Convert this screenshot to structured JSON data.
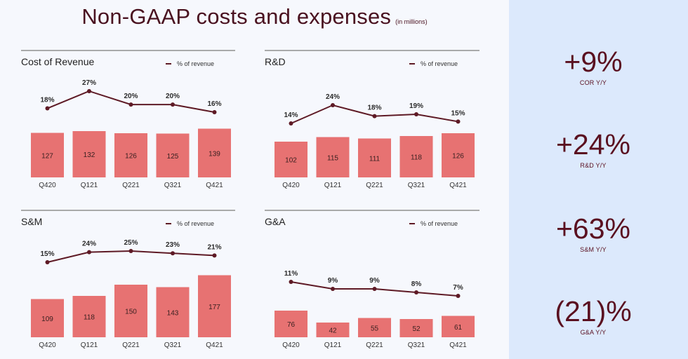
{
  "header": {
    "title": "Non-GAAP costs and expenses",
    "subtitle": "(in millions)"
  },
  "colors": {
    "bar": "#e77272",
    "line": "#5e1a25",
    "title": "#4a1220",
    "sidebar": "#dce9fc"
  },
  "legend_label": "% of revenue",
  "sidebar": {
    "stats": [
      {
        "value": "+9%",
        "label": "COR Y/Y"
      },
      {
        "value": "+24%",
        "label": "R&D Y/Y"
      },
      {
        "value": "+63%",
        "label": "S&M Y/Y"
      },
      {
        "value": "(21)%",
        "label": "G&A Y/Y"
      }
    ]
  },
  "chart_data": [
    {
      "type": "bar",
      "title": "Cost of Revenue",
      "categories": [
        "Q420",
        "Q121",
        "Q221",
        "Q321",
        "Q421"
      ],
      "values": [
        127,
        132,
        126,
        125,
        139
      ],
      "ylim": [
        0,
        180
      ],
      "line": {
        "name": "% of revenue",
        "values": [
          18,
          27,
          20,
          20,
          16
        ],
        "labels": [
          "18%",
          "27%",
          "20%",
          "20%",
          "16%"
        ]
      }
    },
    {
      "type": "bar",
      "title": "R&D",
      "categories": [
        "Q420",
        "Q121",
        "Q221",
        "Q321",
        "Q421"
      ],
      "values": [
        102,
        115,
        111,
        118,
        126
      ],
      "ylim": [
        0,
        180
      ],
      "line": {
        "name": "% of revenue",
        "values": [
          14,
          24,
          18,
          19,
          15
        ],
        "labels": [
          "14%",
          "24%",
          "18%",
          "19%",
          "15%"
        ]
      }
    },
    {
      "type": "bar",
      "title": "S&M",
      "categories": [
        "Q420",
        "Q121",
        "Q221",
        "Q321",
        "Q421"
      ],
      "values": [
        109,
        118,
        150,
        143,
        177
      ],
      "ylim": [
        0,
        180
      ],
      "line": {
        "name": "% of revenue",
        "values": [
          15,
          24,
          25,
          23,
          21
        ],
        "labels": [
          "15%",
          "24%",
          "25%",
          "23%",
          "21%"
        ]
      }
    },
    {
      "type": "bar",
      "title": "G&A",
      "categories": [
        "Q420",
        "Q121",
        "Q221",
        "Q321",
        "Q421"
      ],
      "values": [
        76,
        42,
        55,
        52,
        61
      ],
      "ylim": [
        0,
        180
      ],
      "line": {
        "name": "% of revenue",
        "values": [
          11,
          9,
          9,
          8,
          7
        ],
        "labels": [
          "11%",
          "9%",
          "9%",
          "8%",
          "7%"
        ]
      }
    }
  ]
}
